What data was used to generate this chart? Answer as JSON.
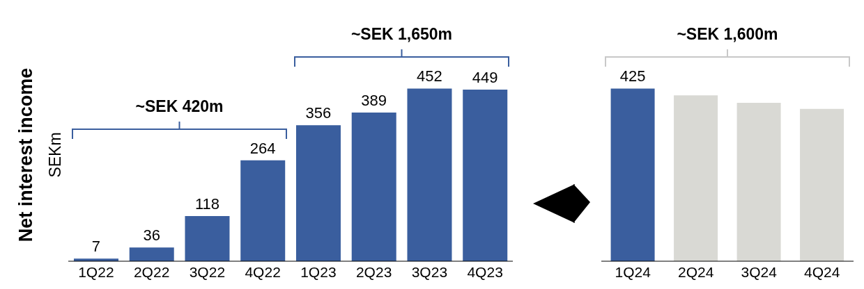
{
  "chart_data": [
    {
      "type": "bar",
      "ylabel": "Net interest income",
      "annotations": [
        "SEKm",
        "~SEK 420m",
        "~SEK 1,650m"
      ],
      "categories": [
        "1Q22",
        "2Q22",
        "3Q22",
        "4Q22",
        "1Q23",
        "2Q23",
        "3Q23",
        "4Q23"
      ],
      "values": [
        7,
        36,
        118,
        264,
        356,
        389,
        452,
        449
      ],
      "color": "#3a5e9e",
      "data_labels": true
    },
    {
      "type": "bar",
      "annotations": [
        "~SEK 1,600m"
      ],
      "categories": [
        "1Q24",
        "2Q24",
        "3Q24",
        "4Q24"
      ],
      "values": [
        425,
        408,
        390,
        375
      ],
      "colors": [
        "#3a5e9e",
        "#d9d9d4",
        "#d9d9d4",
        "#d9d9d4"
      ],
      "value_labels": [
        "425",
        null,
        null,
        null
      ]
    }
  ]
}
